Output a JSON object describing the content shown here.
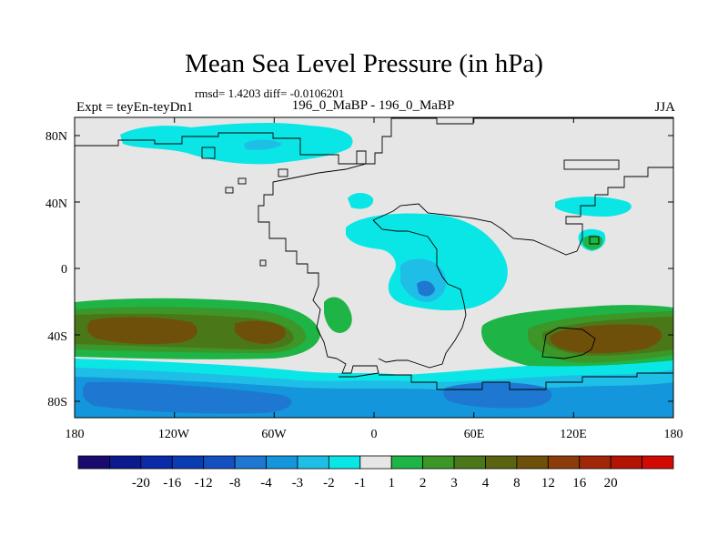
{
  "title": "Mean Sea Level Pressure (in hPa)",
  "stats": "rmsd= 1.4203 diff= -0.0106201",
  "expt_label": "Expt = teyEn-teyDn1",
  "period_label": "196_0_MaBP - 196_0_MaBP",
  "season_label": "JJA",
  "lat_ticks": [
    "80N",
    "40N",
    "0",
    "40S",
    "80S"
  ],
  "lon_ticks": [
    "180",
    "120W",
    "60W",
    "0",
    "60E",
    "120E",
    "180"
  ],
  "colorbar": {
    "labels": [
      "-20",
      "-16",
      "-12",
      "-8",
      "-4",
      "-3",
      "-2",
      "-1",
      "1",
      "2",
      "3",
      "4",
      "8",
      "12",
      "16",
      "20"
    ],
    "colors": [
      "#1a0a6e",
      "#0a1a8c",
      "#0a2aa8",
      "#0a3cb4",
      "#1450c0",
      "#1e78d2",
      "#1496dc",
      "#1ebee6",
      "#0ae6e6",
      "#e6e6e6",
      "#1eb446",
      "#3c9628",
      "#4a7818",
      "#5a6410",
      "#6e500a",
      "#8c3c0a",
      "#a02808",
      "#b41406",
      "#d20a04"
    ]
  },
  "palette": {
    "background": "#e6e6e6",
    "cyan": "#0ae6e6",
    "light_blue": "#1ebee6",
    "mid_blue": "#1e78d2",
    "green": "#1eb446",
    "dark_green": "#3c9628",
    "olive": "#4a7818",
    "brown": "#6e500a"
  }
}
